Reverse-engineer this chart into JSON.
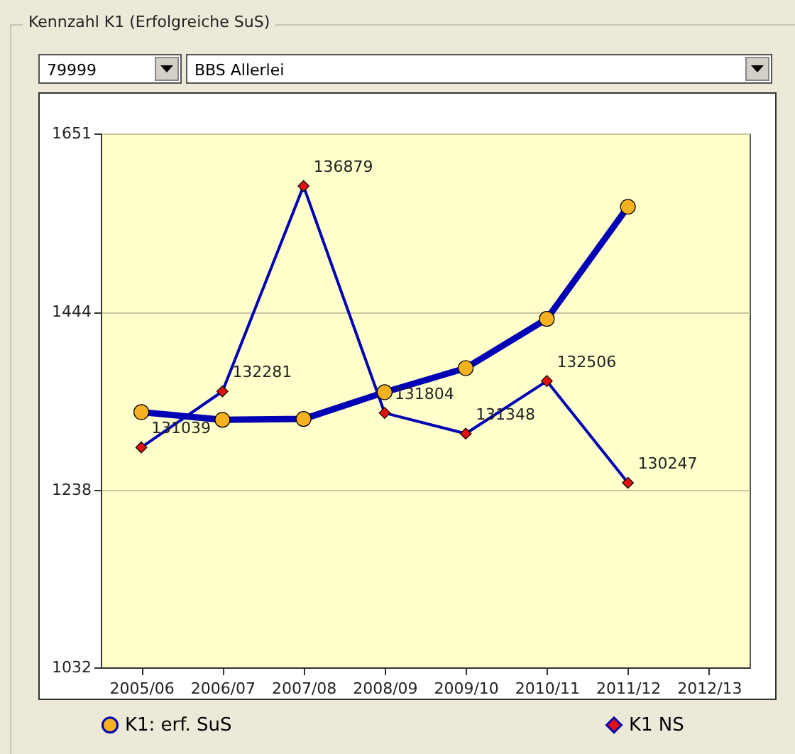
{
  "chart_data": {
    "type": "line",
    "title": "Kennzahl K1 (Erfolgreiche SuS)",
    "annotations": [
      "79999",
      "BBS Allerlei",
      {
        "text": "131039",
        "x": "2005/06",
        "y": 1287
      },
      {
        "text": "132281",
        "x": "2006/07",
        "y": 1352
      },
      {
        "text": "136879",
        "x": "2007/08",
        "y": 1590
      },
      {
        "text": "131804",
        "x": "2008/09",
        "y": 1327
      },
      {
        "text": "131348",
        "x": "2009/10",
        "y": 1303
      },
      {
        "text": "132506",
        "x": "2010/11",
        "y": 1364
      },
      {
        "text": "130247",
        "x": "2011/12",
        "y": 1246
      }
    ],
    "categories": [
      "2005/06",
      "2006/07",
      "2007/08",
      "2008/09",
      "2009/10",
      "2010/11",
      "2011/12",
      "2012/13"
    ],
    "series": [
      {
        "name": "K1: erf. SuS",
        "color": "#0000b4",
        "marker": "circle",
        "values": [
          1328,
          1319,
          1320,
          1351,
          1379,
          1436,
          1566,
          null
        ]
      },
      {
        "name": "K1 NS",
        "color": "#0000b4",
        "marker": "diamond",
        "values": [
          1287,
          1352,
          1590,
          1327,
          1303,
          1364,
          1246,
          null
        ]
      }
    ],
    "ylim": [
      1032,
      1651
    ],
    "yticks": [
      1032,
      1238,
      1444,
      1651
    ],
    "grid": "y",
    "legend": "bottom"
  }
}
